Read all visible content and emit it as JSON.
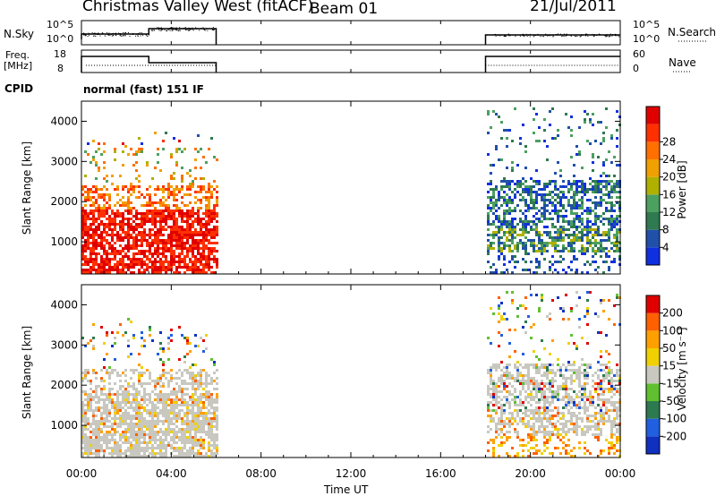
{
  "header": {
    "title": "Christmas Valley West (fitACF)",
    "beam": "Beam 01",
    "date": "21/Jul/2011"
  },
  "panels": {
    "nsky": {
      "label": "N.Sky",
      "ticks": [
        "10^5",
        "10^0"
      ],
      "right_label": "N.Search",
      "right_ticks": [
        "10^5",
        "10^0"
      ]
    },
    "freq": {
      "label_top": "Freq.",
      "label_bottom": "[MHz]",
      "ticks": [
        "18",
        "8"
      ],
      "right_label": "Nave",
      "right_ticks": [
        "60",
        "0"
      ]
    },
    "cpid": {
      "label": "CPID",
      "text": "normal (fast) 151 IF"
    }
  },
  "chart_data": [
    {
      "type": "heatmap",
      "name": "power",
      "ylabel": "Slant Range [km]",
      "y_ticks": [
        1000,
        2000,
        3000,
        4000
      ],
      "ylim": [
        200,
        4500
      ],
      "colorbar": {
        "label": "Power [dB]",
        "ticks": [
          "4",
          "8",
          "12",
          "16",
          "20",
          "24",
          "28"
        ],
        "colors": [
          "#1030e0",
          "#2050a8",
          "#2f7a50",
          "#4ca060",
          "#b0b000",
          "#f0a000",
          "#ff7000",
          "#ff3000",
          "#e00000"
        ]
      }
    },
    {
      "type": "heatmap",
      "name": "velocity",
      "ylabel": "Slant Range [km]",
      "y_ticks": [
        1000,
        2000,
        3000,
        4000
      ],
      "ylim": [
        200,
        4500
      ],
      "colorbar": {
        "label": "Velocity [m s⁻¹]",
        "ticks": [
          "200",
          "100",
          "50",
          "15",
          "-15",
          "-50",
          "-100",
          "-200"
        ],
        "colors": [
          "#1030c0",
          "#2060e0",
          "#2e7a50",
          "#60c030",
          "#c8c8c0",
          "#f0d000",
          "#ffa000",
          "#ff6000",
          "#e00000"
        ]
      }
    }
  ],
  "x_axis": {
    "label": "Time UT",
    "ticks": [
      "00:00",
      "04:00",
      "08:00",
      "12:00",
      "16:00",
      "20:00",
      "00:00"
    ]
  }
}
